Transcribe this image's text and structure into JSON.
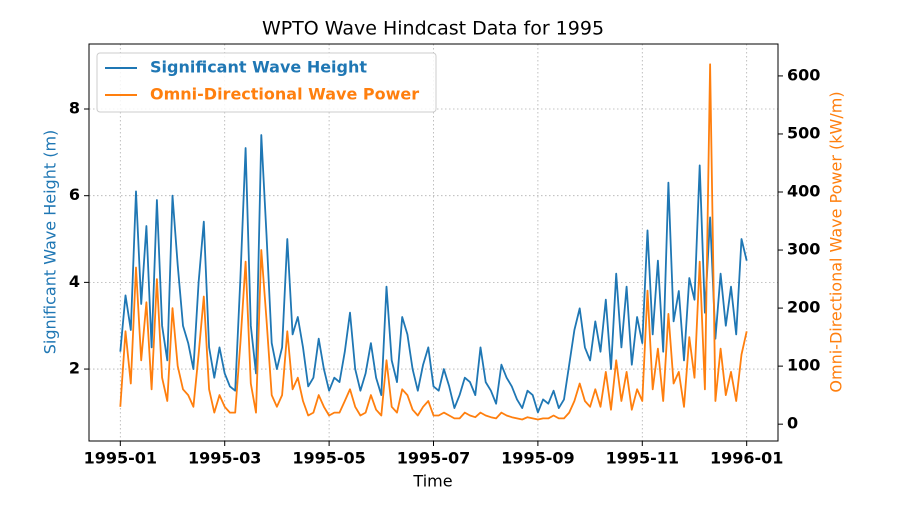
{
  "chart_data": {
    "type": "line",
    "title": "WPTO Wave Hindcast Data for 1995",
    "xlabel": "Time",
    "ylabel": "Significant Wave Height (m)",
    "y2label": "Omni-Directional Wave Power (kW/m)",
    "x": [
      0,
      0.1,
      0.2,
      0.3,
      0.4,
      0.5,
      0.6,
      0.7,
      0.8,
      0.9,
      1,
      1.1,
      1.2,
      1.3,
      1.4,
      1.5,
      1.6,
      1.7,
      1.8,
      1.9,
      2,
      2.1,
      2.2,
      2.3,
      2.4,
      2.5,
      2.6,
      2.7,
      2.8,
      2.9,
      3,
      3.1,
      3.2,
      3.3,
      3.4,
      3.5,
      3.6,
      3.7,
      3.8,
      3.9,
      4,
      4.1,
      4.2,
      4.3,
      4.4,
      4.5,
      4.6,
      4.7,
      4.8,
      4.9,
      5,
      5.1,
      5.2,
      5.3,
      5.4,
      5.5,
      5.6,
      5.7,
      5.8,
      5.9,
      6,
      6.1,
      6.2,
      6.3,
      6.4,
      6.5,
      6.6,
      6.7,
      6.8,
      6.9,
      7,
      7.1,
      7.2,
      7.3,
      7.4,
      7.5,
      7.6,
      7.7,
      7.8,
      7.9,
      8,
      8.1,
      8.2,
      8.3,
      8.4,
      8.5,
      8.6,
      8.7,
      8.8,
      8.9,
      9,
      9.1,
      9.2,
      9.3,
      9.4,
      9.5,
      9.6,
      9.7,
      9.8,
      9.9,
      10,
      10.1,
      10.2,
      10.3,
      10.4,
      10.5,
      10.6,
      10.7,
      10.8,
      10.9,
      11,
      11.1,
      11.2,
      11.3,
      11.4,
      11.5,
      11.6,
      11.7,
      11.8,
      11.9,
      12
    ],
    "series": [
      {
        "name": "Significant Wave Height",
        "color": "#1f77b4",
        "axis": "y",
        "values": [
          2.4,
          3.7,
          2.9,
          6.1,
          3.5,
          5.3,
          2.5,
          5.9,
          3.0,
          2.2,
          6.0,
          4.4,
          3.0,
          2.6,
          2.0,
          4.0,
          5.4,
          2.5,
          1.8,
          2.5,
          1.9,
          1.6,
          1.5,
          4.1,
          7.1,
          3.0,
          1.9,
          7.4,
          5.1,
          2.6,
          2.0,
          2.5,
          5.0,
          2.8,
          3.2,
          2.5,
          1.6,
          1.8,
          2.7,
          2.0,
          1.5,
          1.8,
          1.7,
          2.4,
          3.3,
          2.0,
          1.5,
          1.9,
          2.6,
          1.8,
          1.4,
          3.9,
          2.2,
          1.7,
          3.2,
          2.8,
          2.0,
          1.5,
          2.1,
          2.5,
          1.6,
          1.5,
          2.0,
          1.6,
          1.1,
          1.4,
          1.8,
          1.7,
          1.4,
          2.5,
          1.7,
          1.5,
          1.2,
          2.1,
          1.8,
          1.6,
          1.3,
          1.1,
          1.5,
          1.4,
          1.0,
          1.3,
          1.2,
          1.5,
          1.1,
          1.3,
          2.1,
          2.9,
          3.4,
          2.5,
          2.2,
          3.1,
          2.4,
          3.6,
          2.0,
          4.2,
          2.5,
          3.9,
          2.1,
          3.2,
          2.6,
          5.2,
          2.8,
          4.5,
          2.4,
          6.3,
          3.1,
          3.8,
          2.2,
          4.1,
          3.6,
          6.7,
          3.3,
          5.5,
          2.7,
          4.2,
          3.0,
          3.9,
          2.8,
          5.0,
          4.5
        ]
      },
      {
        "name": "Omni-Directional Wave Power",
        "color": "#ff7f0e",
        "axis": "y2",
        "values": [
          30,
          160,
          70,
          270,
          110,
          210,
          60,
          250,
          80,
          40,
          200,
          100,
          60,
          50,
          30,
          120,
          220,
          60,
          20,
          50,
          30,
          20,
          20,
          140,
          280,
          70,
          20,
          300,
          180,
          50,
          30,
          50,
          160,
          60,
          80,
          40,
          15,
          20,
          50,
          30,
          15,
          20,
          20,
          40,
          60,
          30,
          15,
          20,
          50,
          25,
          15,
          110,
          30,
          20,
          60,
          50,
          25,
          15,
          30,
          40,
          15,
          15,
          20,
          15,
          10,
          10,
          20,
          15,
          12,
          20,
          15,
          12,
          10,
          20,
          15,
          12,
          10,
          8,
          12,
          10,
          8,
          10,
          10,
          15,
          10,
          10,
          20,
          40,
          70,
          40,
          30,
          60,
          30,
          90,
          25,
          110,
          40,
          90,
          25,
          60,
          40,
          230,
          60,
          130,
          40,
          190,
          70,
          90,
          30,
          150,
          80,
          280,
          60,
          620,
          40,
          130,
          50,
          90,
          40,
          120,
          160
        ]
      }
    ],
    "xlim": [
      -0.6,
      12.6
    ],
    "xticks": [
      {
        "value": 0,
        "label": "1995-01"
      },
      {
        "value": 2,
        "label": "1995-03"
      },
      {
        "value": 4,
        "label": "1995-05"
      },
      {
        "value": 6,
        "label": "1995-07"
      },
      {
        "value": 8,
        "label": "1995-09"
      },
      {
        "value": 10,
        "label": "1995-11"
      },
      {
        "value": 12,
        "label": "1996-01"
      }
    ],
    "ylim": [
      0.34,
      9.5
    ],
    "yticks": [
      2,
      4,
      6,
      8
    ],
    "y2lim": [
      -29,
      655
    ],
    "y2ticks": [
      0,
      100,
      200,
      300,
      400,
      500,
      600
    ],
    "grid": true,
    "legend": "upper left"
  }
}
